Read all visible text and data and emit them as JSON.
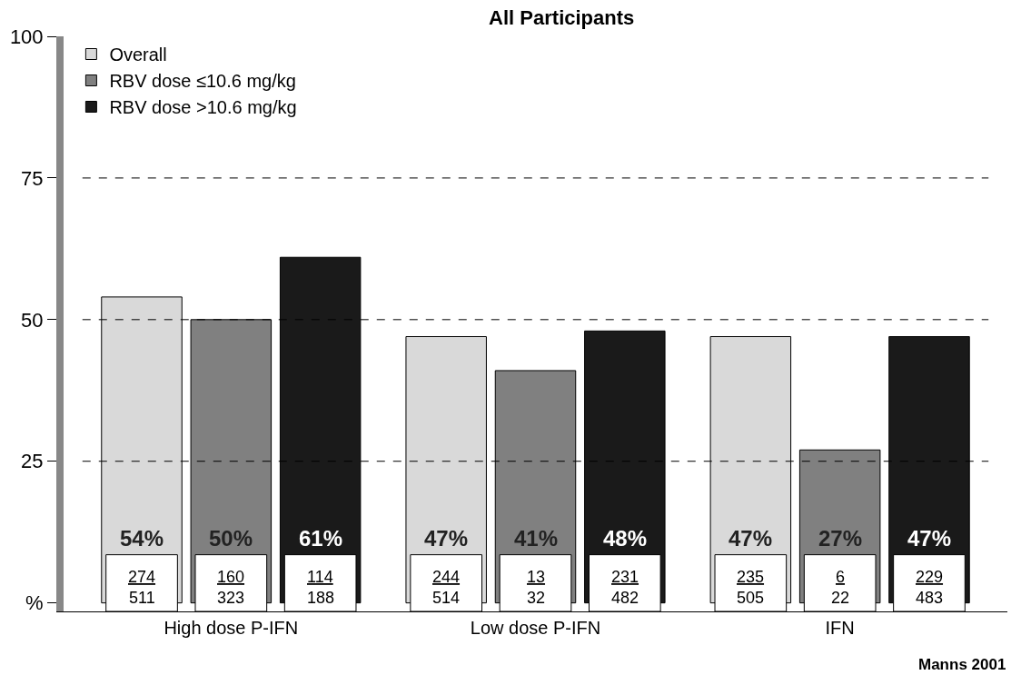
{
  "chart_data": {
    "type": "bar",
    "title": "All Participants",
    "categories": [
      "High dose P-IFN",
      "Low dose P-IFN",
      "IFN"
    ],
    "series": [
      {
        "name": "Overall",
        "color": "#d9d9d9",
        "values": [
          54,
          47,
          47
        ],
        "value_labels": [
          "54%",
          "47%",
          "47%"
        ]
      },
      {
        "name": "RBV dose ≤10.6 mg/kg",
        "color": "#808080",
        "values": [
          50,
          41,
          27
        ],
        "value_labels": [
          "50%",
          "41%",
          "27%"
        ]
      },
      {
        "name": "RBV dose >10.6 mg/kg",
        "color": "#1a1a1a",
        "values": [
          61,
          48,
          47
        ],
        "value_labels": [
          "61%",
          "48%",
          "47%"
        ]
      }
    ],
    "ylim": [
      -1.5,
      100
    ],
    "yticks": [
      {
        "value": 0,
        "label": "%"
      },
      25,
      50,
      75,
      100
    ],
    "ref_lines": [
      {
        "axis": "y",
        "value": 25,
        "line_style": "dashed"
      },
      {
        "axis": "y",
        "value": 50,
        "line_style": "dashed"
      },
      {
        "axis": "y",
        "value": 75,
        "line_style": "dashed"
      }
    ],
    "legend": "top left",
    "annotations": [
      "274",
      "511",
      "160",
      "323",
      "114",
      "188",
      "244",
      "514",
      "13",
      "32",
      "231",
      "482",
      "235",
      "505",
      "6",
      "22",
      "229",
      "483",
      "Manns 2001"
    ]
  }
}
